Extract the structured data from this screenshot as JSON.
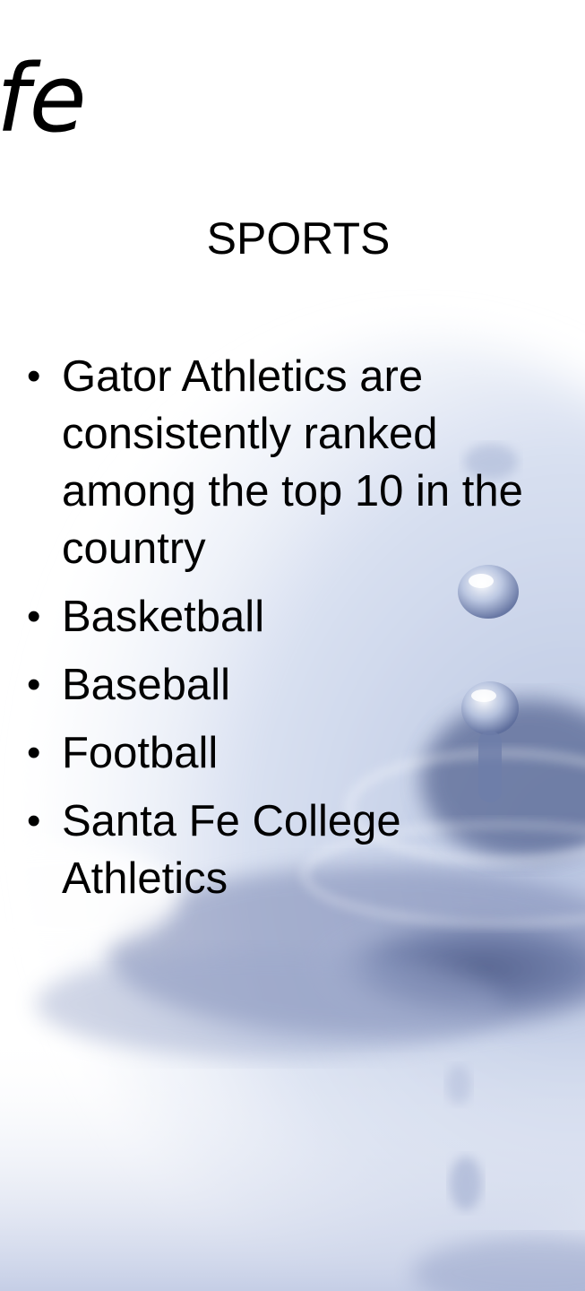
{
  "slide": {
    "title_fragment": "fe",
    "heading": "SPORTS",
    "bullets": [
      {
        "text": "Gator Athletics are consistently ranked among the top 10 in the country"
      },
      {
        "text": "Basketball"
      },
      {
        "text": "Baseball"
      },
      {
        "text": "Football"
      },
      {
        "text": "Santa Fe College Athletics"
      }
    ],
    "bullet_glyph": "•"
  },
  "colors": {
    "text": "#000000",
    "water_light": "#e7ecf5",
    "water_mid": "#b7c3df",
    "water_dark": "#6f7fa9",
    "water_deep": "#4c5a87"
  }
}
